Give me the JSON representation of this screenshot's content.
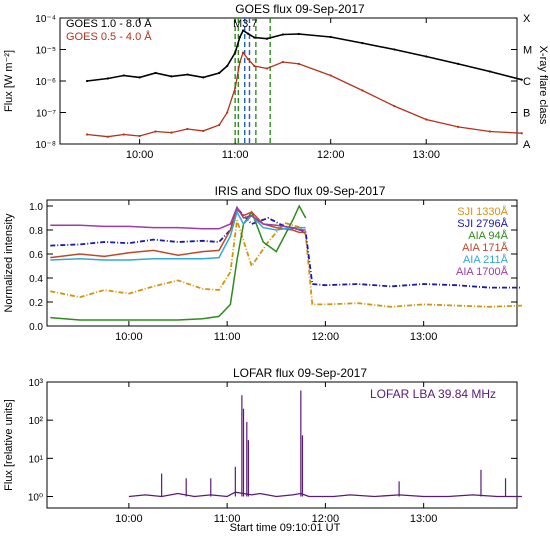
{
  "colors": {
    "goes_long": "#000000",
    "goes_short": "#b5321a",
    "sji1330": "#d4940a",
    "sji2796": "#1a1aa8",
    "aia94": "#2e8b1e",
    "aia171": "#c0482a",
    "aia211": "#33a8d6",
    "aia1700": "#a03aa8",
    "lofar": "#5a1a78",
    "vline_blue": "#1f5fbf",
    "vline_green": "#2e8b1e"
  },
  "chart_data": [
    {
      "type": "line",
      "title": "GOES flux 09-Sep-2017",
      "ylabel": "Flux [W m⁻²]",
      "y2label": "X-ray flare class",
      "yscale": "log",
      "ylim": [
        1e-08,
        0.0001
      ],
      "yticks": [
        "10⁻⁸",
        "10⁻⁷",
        "10⁻⁶",
        "10⁻⁵",
        "10⁻⁴"
      ],
      "y2ticks": [
        "A",
        "B",
        "C",
        "M",
        "X"
      ],
      "xticks": [
        "10:00",
        "11:00",
        "12:00",
        "13:00"
      ],
      "annotation": "M3.7",
      "series": [
        {
          "name": "GOES 1.0 - 8.0 Å",
          "x": [
            "09:27",
            "09:40",
            "09:50",
            "10:00",
            "10:10",
            "10:20",
            "10:30",
            "10:40",
            "10:50",
            "10:55",
            "11:00",
            "11:03",
            "11:05",
            "11:08",
            "11:12",
            "11:20",
            "11:30",
            "11:40",
            "12:00",
            "12:20",
            "12:40",
            "13:00",
            "13:20",
            "13:40",
            "14:00"
          ],
          "values": [
            1e-06,
            1.2e-06,
            1.5e-06,
            1.3e-06,
            1.8e-06,
            1.4e-06,
            1.6e-06,
            1.3e-06,
            1.8e-06,
            3e-06,
            8e-06,
            2.5e-05,
            4e-05,
            3.2e-05,
            2.4e-05,
            2.2e-05,
            3e-05,
            3.1e-05,
            2.5e-05,
            1.6e-05,
            1e-05,
            6e-06,
            3.5e-06,
            2e-06,
            1.1e-06
          ]
        },
        {
          "name": "GOES 0.5 - 4.0 Å",
          "x": [
            "09:27",
            "09:40",
            "09:50",
            "10:00",
            "10:10",
            "10:20",
            "10:30",
            "10:40",
            "10:50",
            "10:55",
            "11:00",
            "11:03",
            "11:05",
            "11:08",
            "11:12",
            "11:20",
            "11:30",
            "11:40",
            "12:00",
            "12:20",
            "12:40",
            "13:00",
            "13:20",
            "13:40",
            "14:00"
          ],
          "values": [
            2e-08,
            1.7e-08,
            2e-08,
            1.8e-08,
            2.5e-08,
            2.3e-08,
            3e-08,
            2.6e-08,
            4e-08,
            1e-07,
            6e-07,
            4e-06,
            8e-06,
            5e-06,
            3e-06,
            2.5e-06,
            4e-06,
            3.5e-06,
            1.5e-06,
            5e-07,
            1.6e-07,
            6e-08,
            3.5e-08,
            2.5e-08,
            2.2e-08
          ]
        }
      ]
    },
    {
      "type": "line",
      "title": "IRIS and SDO flux 09-Sep-2017",
      "ylabel": "Normalized intensity",
      "ylim": [
        0.0,
        1.05
      ],
      "yticks": [
        "0.0",
        "0.2",
        "0.4",
        "0.6",
        "0.8",
        "1.0"
      ],
      "xticks": [
        "10:00",
        "11:00",
        "12:00",
        "13:00"
      ],
      "series": [
        {
          "name": "SJI 1330Å",
          "x": [
            "09:12",
            "09:30",
            "09:45",
            "10:00",
            "10:15",
            "10:30",
            "10:45",
            "10:55",
            "11:02",
            "11:06",
            "11:15",
            "11:25",
            "11:35",
            "11:45",
            "11:48",
            "11:52",
            "12:00",
            "12:20",
            "12:40",
            "13:00",
            "13:20",
            "13:40",
            "14:00"
          ],
          "values": [
            0.29,
            0.24,
            0.3,
            0.27,
            0.33,
            0.38,
            0.31,
            0.3,
            0.45,
            0.88,
            0.5,
            0.7,
            0.86,
            0.82,
            0.76,
            0.18,
            0.18,
            0.19,
            0.16,
            0.18,
            0.17,
            0.16,
            0.17
          ]
        },
        {
          "name": "SJI 2796Å",
          "x": [
            "09:12",
            "09:30",
            "09:45",
            "10:00",
            "10:15",
            "10:30",
            "10:45",
            "10:55",
            "11:02",
            "11:06",
            "11:15",
            "11:25",
            "11:35",
            "11:45",
            "11:48",
            "11:52",
            "12:00",
            "12:20",
            "12:40",
            "13:00",
            "13:20",
            "13:40",
            "14:00"
          ],
          "values": [
            0.67,
            0.68,
            0.7,
            0.69,
            0.72,
            0.7,
            0.71,
            0.7,
            0.8,
            0.98,
            0.85,
            0.9,
            0.83,
            0.8,
            0.78,
            0.35,
            0.34,
            0.35,
            0.33,
            0.35,
            0.34,
            0.32,
            0.32
          ]
        },
        {
          "name": "AIA 94Å",
          "x": [
            "09:12",
            "09:30",
            "09:45",
            "10:00",
            "10:15",
            "10:30",
            "10:45",
            "10:55",
            "11:02",
            "11:06",
            "11:10",
            "11:15",
            "11:22",
            "11:30",
            "11:40",
            "11:44",
            "11:48"
          ],
          "values": [
            0.07,
            0.05,
            0.05,
            0.05,
            0.05,
            0.05,
            0.06,
            0.08,
            0.18,
            0.55,
            0.85,
            0.95,
            0.7,
            0.62,
            0.88,
            1.0,
            0.9
          ]
        },
        {
          "name": "AIA 171Å",
          "x": [
            "09:12",
            "09:30",
            "09:45",
            "10:00",
            "10:15",
            "10:30",
            "10:45",
            "10:55",
            "11:02",
            "11:06",
            "11:10",
            "11:15",
            "11:22",
            "11:30",
            "11:40",
            "11:44",
            "11:48"
          ],
          "values": [
            0.57,
            0.6,
            0.58,
            0.61,
            0.63,
            0.59,
            0.62,
            0.63,
            0.8,
            0.97,
            0.92,
            0.95,
            0.85,
            0.82,
            0.8,
            0.78,
            0.78
          ]
        },
        {
          "name": "AIA 211Å",
          "x": [
            "09:12",
            "09:30",
            "09:45",
            "10:00",
            "10:15",
            "10:30",
            "10:45",
            "10:55",
            "11:02",
            "11:06",
            "11:10",
            "11:15",
            "11:22",
            "11:30",
            "11:40",
            "11:44",
            "11:48"
          ],
          "values": [
            0.55,
            0.56,
            0.55,
            0.55,
            0.56,
            0.56,
            0.56,
            0.57,
            0.75,
            0.95,
            0.85,
            0.92,
            0.82,
            0.8,
            0.82,
            0.82,
            0.82
          ]
        },
        {
          "name": "AIA 1700Å",
          "x": [
            "09:12",
            "09:30",
            "09:45",
            "10:00",
            "10:15",
            "10:30",
            "10:45",
            "10:55",
            "11:02",
            "11:06",
            "11:10",
            "11:15",
            "11:22",
            "11:30",
            "11:40",
            "11:44",
            "11:48"
          ],
          "values": [
            0.84,
            0.84,
            0.83,
            0.83,
            0.82,
            0.82,
            0.81,
            0.81,
            0.85,
            0.99,
            0.9,
            0.92,
            0.85,
            0.84,
            0.82,
            0.8,
            0.8
          ]
        }
      ]
    },
    {
      "type": "line",
      "title": "LOFAR flux 09-Sep-2017",
      "ylabel": "Flux [relative units]",
      "xlabel": "Start time 09:10:01 UT",
      "yscale": "log",
      "ylim": [
        0.5,
        1000
      ],
      "yticks": [
        "10⁰",
        "10¹",
        "10²",
        "10³"
      ],
      "xticks": [
        "10:00",
        "11:00",
        "12:00",
        "13:00"
      ],
      "series": [
        {
          "name": "LOFAR LBA 39.84 MHz",
          "x": [
            "10:00",
            "10:10",
            "10:20",
            "10:30",
            "10:40",
            "10:50",
            "11:00",
            "11:05",
            "11:10",
            "11:15",
            "11:20",
            "11:30",
            "11:40",
            "11:45",
            "11:50",
            "11:55",
            "12:05",
            "12:15",
            "12:30",
            "12:45",
            "13:00",
            "13:15",
            "13:30",
            "13:45",
            "14:00"
          ],
          "values": [
            1.0,
            1.1,
            1.0,
            1.2,
            1.0,
            1.1,
            1.0,
            1.3,
            1.2,
            1.1,
            1.2,
            1.0,
            1.1,
            1.2,
            1.0,
            1.0,
            1.0,
            1.1,
            1.0,
            1.1,
            1.0,
            1.0,
            1.1,
            1.0,
            1.0
          ]
        }
      ]
    }
  ]
}
